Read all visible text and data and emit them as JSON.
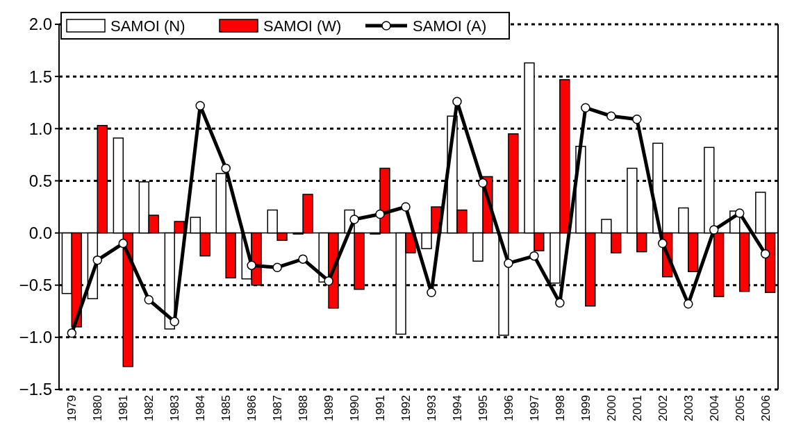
{
  "chart_data": {
    "type": "bar",
    "categories": [
      "1979",
      "1980",
      "1981",
      "1982",
      "1983",
      "1984",
      "1985",
      "1986",
      "1987",
      "1988",
      "1989",
      "1990",
      "1991",
      "1992",
      "1993",
      "1994",
      "1995",
      "1996",
      "1997",
      "1998",
      "1999",
      "2000",
      "2001",
      "2002",
      "2003",
      "2004",
      "2005",
      "2006"
    ],
    "series": [
      {
        "name": "SAMOI (N)",
        "color": "#ffffff",
        "values": [
          -0.58,
          -0.63,
          0.91,
          0.49,
          -0.92,
          0.15,
          0.57,
          -0.44,
          0.22,
          -0.01,
          -0.47,
          0.22,
          -0.01,
          -0.97,
          -0.15,
          1.12,
          -0.27,
          -0.98,
          1.63,
          -0.48,
          0.83,
          0.13,
          0.62,
          0.86,
          0.24,
          0.82,
          0.21,
          0.39
        ]
      },
      {
        "name": "SAMOI (W)",
        "color": "#ff0000",
        "values": [
          -0.9,
          1.03,
          -1.28,
          0.17,
          0.11,
          -0.22,
          -0.43,
          -0.5,
          -0.07,
          0.37,
          -0.72,
          -0.54,
          0.62,
          -0.19,
          0.25,
          0.22,
          0.54,
          0.95,
          -0.17,
          1.47,
          -0.7,
          -0.19,
          -0.18,
          -0.42,
          -0.37,
          -0.61,
          -0.56,
          -0.57
        ]
      },
      {
        "name": "SAMOI (A)",
        "type": "line",
        "color": "#000000",
        "values": [
          -0.96,
          -0.26,
          -0.1,
          -0.64,
          -0.85,
          1.22,
          0.62,
          -0.31,
          -0.33,
          -0.25,
          -0.46,
          0.13,
          0.18,
          0.25,
          -0.57,
          1.26,
          0.48,
          -0.29,
          -0.22,
          -0.67,
          1.2,
          1.12,
          1.09,
          -0.1,
          -0.68,
          0.03,
          0.19,
          -0.2
        ]
      }
    ],
    "ylim": [
      -1.5,
      2.0
    ],
    "yticks": [
      {
        "value": -1.5,
        "label": "−1.5"
      },
      {
        "value": -1.0,
        "label": "−1.0"
      },
      {
        "value": -0.5,
        "label": "−0.5"
      },
      {
        "value": 0,
        "label": "0.0"
      },
      {
        "value": 0.5,
        "label": "0.5"
      },
      {
        "value": 1.0,
        "label": "1.0"
      },
      {
        "value": 1.5,
        "label": "1.5"
      },
      {
        "value": 2.0,
        "label": "2.0"
      }
    ],
    "grid": "y",
    "line_style": "solid",
    "marker": "circle",
    "legend": "top left"
  }
}
